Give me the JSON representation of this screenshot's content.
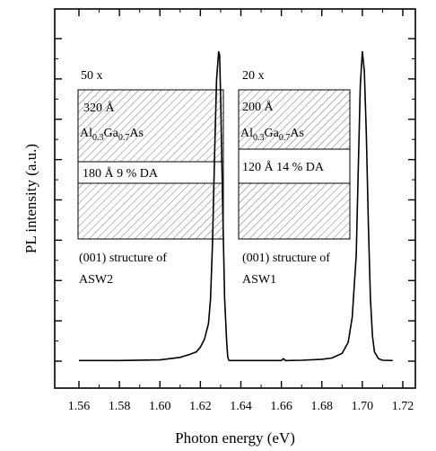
{
  "chart_data": {
    "type": "line",
    "xlabel": "Photon energy (eV)",
    "ylabel": "PL intensity (a.u.)",
    "xlim": [
      1.56,
      1.72
    ],
    "ylim": [
      0,
      1.0
    ],
    "x_ticks": [
      "1.56",
      "1.58",
      "1.60",
      "1.62",
      "1.64",
      "1.66",
      "1.68",
      "1.70",
      "1.72"
    ],
    "y_ticks_labeled": false,
    "grid": false,
    "series": [
      {
        "x": [
          1.56,
          1.58,
          1.6,
          1.605,
          1.61,
          1.612,
          1.615,
          1.618,
          1.62,
          1.622,
          1.624,
          1.625,
          1.626,
          1.627,
          1.628,
          1.629,
          1.6295,
          1.63,
          1.631,
          1.632,
          1.633,
          1.6335,
          1.634
        ],
        "y": [
          0.002,
          0.002,
          0.004,
          0.008,
          0.012,
          0.016,
          0.022,
          0.03,
          0.045,
          0.07,
          0.12,
          0.2,
          0.38,
          0.66,
          0.9,
          0.99,
          0.98,
          0.85,
          0.5,
          0.2,
          0.06,
          0.015,
          0.002
        ]
      },
      {
        "x": [
          1.634,
          1.64,
          1.65,
          1.66,
          1.661,
          1.662,
          1.663,
          1.67,
          1.68,
          1.685,
          1.69,
          1.693,
          1.695,
          1.697,
          1.698,
          1.699,
          1.7,
          1.701,
          1.702,
          1.703,
          1.704,
          1.705,
          1.706,
          1.708,
          1.71,
          1.715
        ],
        "y": [
          0.002,
          0.002,
          0.002,
          0.002,
          0.008,
          0.002,
          0.002,
          0.003,
          0.006,
          0.01,
          0.025,
          0.06,
          0.14,
          0.34,
          0.62,
          0.88,
          0.99,
          0.93,
          0.72,
          0.44,
          0.2,
          0.08,
          0.03,
          0.008,
          0.003,
          0.002
        ]
      }
    ]
  },
  "insets": [
    {
      "multiplier": "50 x",
      "barrier_thickness": "320 Å",
      "barrier_material": {
        "a": "Al",
        "a_sub": "0.3",
        "b": "Ga",
        "b_sub": "0.7",
        "c": "As"
      },
      "well_label": "180 Å 9 % DA",
      "structure_line1": "(001) structure of",
      "structure_line2": "ASW2"
    },
    {
      "multiplier": "20 x",
      "barrier_thickness": "200 Å",
      "barrier_material": {
        "a": "Al",
        "a_sub": "0.3",
        "b": "Ga",
        "b_sub": "0.7",
        "c": "As"
      },
      "well_label": "120 Å 14 % DA",
      "structure_line1": "(001) structure of",
      "structure_line2": "ASW1"
    }
  ]
}
